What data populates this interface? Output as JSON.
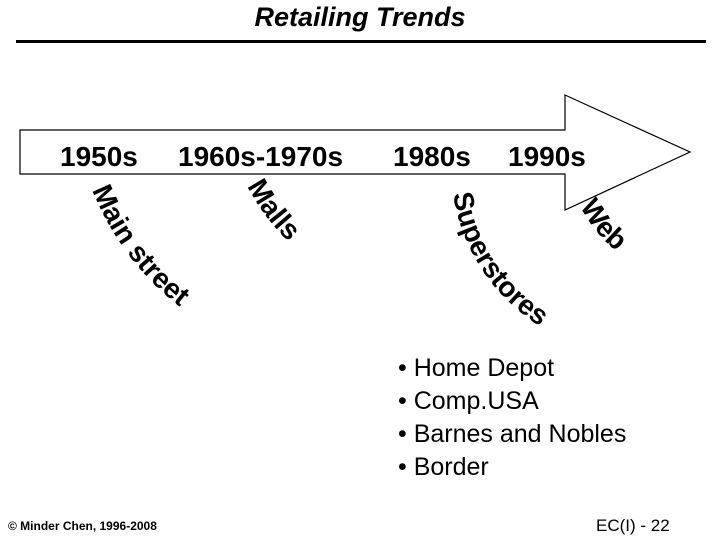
{
  "title": "Retailing Trends",
  "timeline": {
    "eras": [
      "1950s",
      "1960s-1970s",
      "1980s",
      "1990s"
    ]
  },
  "formats": [
    "Main street",
    "Malls",
    "Superstores",
    "Web"
  ],
  "examples": [
    "Home Depot",
    "Comp.USA",
    "Barnes and Nobles",
    "Border"
  ],
  "footer": {
    "copyright": "© Minder Chen, 1996-2008",
    "page": "EC(I) - 22"
  }
}
